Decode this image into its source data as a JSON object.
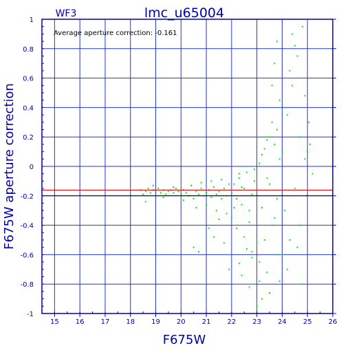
{
  "chart_data": {
    "type": "scatter",
    "title": "lmc_u65004",
    "subtitle": "WF3",
    "annotation": "Average aperture correction: -0.161",
    "xlabel": "F675W",
    "ylabel": "F675W aperture correction",
    "xlim": [
      14.5,
      26
    ],
    "ylim": [
      -1,
      1
    ],
    "xticks": [
      "15",
      "16",
      "17",
      "18",
      "19",
      "20",
      "21",
      "22",
      "23",
      "24",
      "25",
      "26"
    ],
    "yticks": [
      "-1",
      "-0.8",
      "-0.6",
      "-0.4",
      "-0.2",
      "0",
      "0.2",
      "0.4",
      "0.6",
      "0.8",
      "1"
    ],
    "grid": true,
    "reference_lines": [
      {
        "y": -0.161,
        "color": "#dd0000"
      },
      {
        "y": -0.2,
        "color": "#000000"
      }
    ],
    "colors": {
      "axis": "#0000aa",
      "grid": "#2233cc",
      "points": "#00ee00",
      "mean_line": "#dd0000",
      "ref_line": "#000000"
    },
    "series": [
      {
        "values": [
          [
            18.4,
            -0.16
          ],
          [
            18.5,
            -0.19
          ],
          [
            18.6,
            -0.17
          ],
          [
            18.7,
            -0.15
          ],
          [
            18.8,
            -0.18
          ],
          [
            18.9,
            -0.16
          ],
          [
            19.0,
            -0.17
          ],
          [
            19.1,
            -0.15
          ],
          [
            19.2,
            -0.18
          ],
          [
            19.3,
            -0.16
          ],
          [
            19.4,
            -0.19
          ],
          [
            19.5,
            -0.17
          ],
          [
            19.6,
            -0.16
          ],
          [
            19.7,
            -0.18
          ],
          [
            19.8,
            -0.15
          ],
          [
            19.9,
            -0.17
          ],
          [
            20.0,
            -0.19
          ],
          [
            20.1,
            -0.16
          ],
          [
            20.2,
            -0.18
          ],
          [
            20.3,
            -0.2
          ],
          [
            18.6,
            -0.24
          ],
          [
            18.9,
            -0.13
          ],
          [
            19.3,
            -0.21
          ],
          [
            19.7,
            -0.14
          ],
          [
            20.1,
            -0.23
          ],
          [
            20.4,
            -0.13
          ],
          [
            20.5,
            -0.22
          ],
          [
            20.6,
            -0.17
          ],
          [
            20.7,
            -0.19
          ],
          [
            20.8,
            -0.15
          ],
          [
            20.9,
            -0.2
          ],
          [
            21.0,
            -0.18
          ],
          [
            21.1,
            -0.16
          ],
          [
            21.2,
            -0.21
          ],
          [
            21.3,
            -0.14
          ],
          [
            21.4,
            -0.19
          ],
          [
            21.5,
            -0.17
          ],
          [
            21.6,
            -0.22
          ],
          [
            21.7,
            -0.15
          ],
          [
            21.8,
            -0.2
          ],
          [
            21.9,
            -0.12
          ],
          [
            20.6,
            -0.28
          ],
          [
            20.8,
            -0.11
          ],
          [
            21.0,
            -0.26
          ],
          [
            21.2,
            -0.1
          ],
          [
            21.4,
            -0.3
          ],
          [
            21.6,
            -0.09
          ],
          [
            21.8,
            -0.32
          ],
          [
            20.5,
            -0.55
          ],
          [
            20.7,
            -0.58
          ],
          [
            21.1,
            -0.42
          ],
          [
            21.5,
            -0.36
          ],
          [
            21.7,
            -0.52
          ],
          [
            21.3,
            -0.48
          ],
          [
            22.0,
            -0.18
          ],
          [
            22.1,
            -0.12
          ],
          [
            22.2,
            -0.22
          ],
          [
            22.3,
            -0.08
          ],
          [
            22.4,
            -0.26
          ],
          [
            22.5,
            -0.15
          ],
          [
            22.6,
            -0.04
          ],
          [
            22.7,
            -0.3
          ],
          [
            22.8,
            -0.19
          ],
          [
            22.9,
            -0.1
          ],
          [
            22.0,
            -0.35
          ],
          [
            22.2,
            -0.42
          ],
          [
            22.3,
            -0.05
          ],
          [
            22.5,
            -0.48
          ],
          [
            22.6,
            -0.56
          ],
          [
            22.8,
            -0.62
          ],
          [
            22.9,
            -0.02
          ],
          [
            22.1,
            -0.28
          ],
          [
            22.4,
            -0.14
          ],
          [
            22.7,
            -0.38
          ],
          [
            21.9,
            -0.7
          ],
          [
            22.4,
            -0.74
          ],
          [
            22.7,
            -0.82
          ],
          [
            22.8,
            -0.58
          ],
          [
            22.3,
            -0.66
          ],
          [
            23.0,
            -0.16
          ],
          [
            23.1,
            0.02
          ],
          [
            23.2,
            -0.28
          ],
          [
            23.3,
            0.12
          ],
          [
            23.4,
            -0.08
          ],
          [
            23.5,
            0.2
          ],
          [
            23.6,
            -0.4
          ],
          [
            23.7,
            0.15
          ],
          [
            23.8,
            -0.22
          ],
          [
            23.9,
            0.05
          ],
          [
            23.0,
            -0.52
          ],
          [
            23.1,
            -0.65
          ],
          [
            23.2,
            0.08
          ],
          [
            23.4,
            -0.72
          ],
          [
            23.5,
            -0.86
          ],
          [
            23.6,
            0.3
          ],
          [
            23.8,
            -0.6
          ],
          [
            23.9,
            0.45
          ],
          [
            23.3,
            -0.5
          ],
          [
            23.7,
            -0.35
          ],
          [
            23.0,
            -0.95
          ],
          [
            23.1,
            -0.78
          ],
          [
            23.2,
            -0.9
          ],
          [
            23.6,
            0.55
          ],
          [
            23.7,
            0.7
          ],
          [
            23.8,
            0.85
          ],
          [
            23.9,
            -0.78
          ],
          [
            23.4,
            0.18
          ],
          [
            23.5,
            -0.12
          ],
          [
            23.8,
            0.25
          ],
          [
            24.0,
            0.1
          ],
          [
            24.1,
            -0.3
          ],
          [
            24.2,
            0.35
          ],
          [
            24.3,
            -0.5
          ],
          [
            24.4,
            0.55
          ],
          [
            24.5,
            -0.15
          ],
          [
            24.6,
            0.75
          ],
          [
            24.7,
            -0.4
          ],
          [
            24.8,
            0.95
          ],
          [
            24.9,
            0.05
          ],
          [
            24.0,
            -0.6
          ],
          [
            24.2,
            -0.7
          ],
          [
            24.3,
            0.65
          ],
          [
            24.5,
            0.82
          ],
          [
            24.6,
            -0.55
          ],
          [
            24.8,
            -0.8
          ],
          [
            24.9,
            0.48
          ],
          [
            24.4,
            0.9
          ],
          [
            24.7,
            0.2
          ],
          [
            24.1,
            0.4
          ],
          [
            25.0,
            0.1
          ],
          [
            25.1,
            0.15
          ],
          [
            25.2,
            -0.05
          ],
          [
            24.95,
            -0.2
          ],
          [
            25.05,
            0.3
          ]
        ]
      }
    ]
  }
}
